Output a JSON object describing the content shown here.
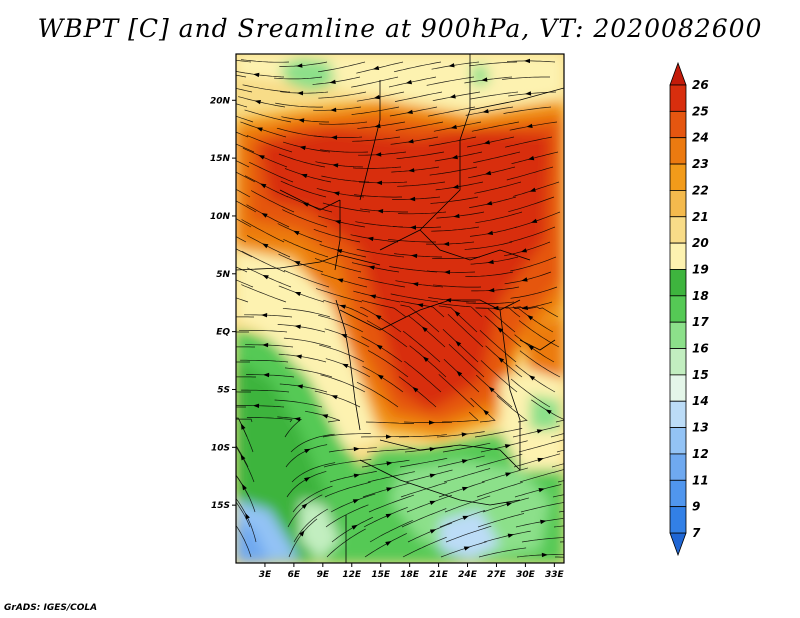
{
  "title": "WBPT [C] and Sreamline at 900hPa, VT: 2020082600",
  "credit": "GrADS: IGES/COLA",
  "chart_data": {
    "type": "heatmap",
    "title": "WBPT [C] and Sreamline at 900hPa, VT: 2020082600",
    "variable": "Wet-bulb potential temperature",
    "units": "C",
    "level": "900hPa",
    "valid_time": "2020082600",
    "overlay": "streamlines",
    "lon_range": [
      0,
      34
    ],
    "lat_range": [
      -20,
      24
    ],
    "lon_ticks": [
      "3E",
      "6E",
      "9E",
      "12E",
      "15E",
      "18E",
      "21E",
      "24E",
      "27E",
      "30E",
      "33E"
    ],
    "lon_tick_values": [
      3,
      6,
      9,
      12,
      15,
      18,
      21,
      24,
      27,
      30,
      33
    ],
    "lat_ticks": [
      "20N",
      "15N",
      "10N",
      "5N",
      "EQ",
      "5S",
      "10S",
      "15S"
    ],
    "lat_tick_values": [
      20,
      15,
      10,
      5,
      0,
      -5,
      -10,
      -15
    ],
    "colorbar": {
      "levels": [
        "7",
        "9",
        "11",
        "12",
        "13",
        "14",
        "15",
        "16",
        "17",
        "18",
        "19",
        "20",
        "21",
        "22",
        "23",
        "24",
        "25",
        "26"
      ],
      "colors": [
        "#1f66d4",
        "#3280e6",
        "#5096ee",
        "#6fa9f0",
        "#93c3f5",
        "#bcdcf7",
        "#e4f6e9",
        "#c2eec0",
        "#8ce08a",
        "#55c955",
        "#3eb43e",
        "#fdf2b0",
        "#f8dc88",
        "#f4ba4d",
        "#f29b1a",
        "#ec7a10",
        "#e55610",
        "#d82e0e",
        "#c31b0a"
      ]
    }
  }
}
